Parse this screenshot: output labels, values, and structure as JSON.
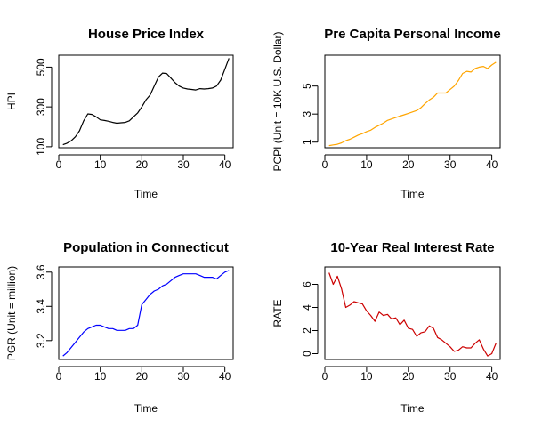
{
  "chart_data": [
    {
      "type": "line",
      "title": "House Price Index",
      "xlabel": "Time",
      "ylabel": "HPI",
      "color": "#000000",
      "xlim": [
        0,
        42
      ],
      "ylim": [
        95,
        560
      ],
      "xticks": [
        0,
        10,
        20,
        30,
        40
      ],
      "yticks": [
        100,
        300,
        500
      ],
      "x": [
        1,
        2,
        3,
        4,
        5,
        6,
        7,
        8,
        9,
        10,
        11,
        12,
        13,
        14,
        15,
        16,
        17,
        18,
        19,
        20,
        21,
        22,
        23,
        24,
        25,
        26,
        27,
        28,
        29,
        30,
        31,
        32,
        33,
        34,
        35,
        36,
        37,
        38,
        39,
        40,
        41
      ],
      "y": [
        110,
        118,
        130,
        150,
        180,
        230,
        265,
        262,
        250,
        235,
        232,
        228,
        222,
        218,
        220,
        222,
        230,
        250,
        270,
        300,
        335,
        360,
        405,
        450,
        470,
        468,
        445,
        422,
        405,
        395,
        390,
        388,
        385,
        392,
        390,
        392,
        395,
        405,
        435,
        490,
        545
      ]
    },
    {
      "type": "line",
      "title": "Pre Capita Personal Income",
      "xlabel": "Time",
      "ylabel": "PCPI (Unit = 10K U.S. Dollar)",
      "color": "#FFA500",
      "xlim": [
        0,
        42
      ],
      "ylim": [
        0.6,
        7.2
      ],
      "xticks": [
        0,
        10,
        20,
        30,
        40
      ],
      "yticks": [
        1,
        3,
        5
      ],
      "x": [
        1,
        2,
        3,
        4,
        5,
        6,
        7,
        8,
        9,
        10,
        11,
        12,
        13,
        14,
        15,
        16,
        17,
        18,
        19,
        20,
        21,
        22,
        23,
        24,
        25,
        26,
        27,
        28,
        29,
        30,
        31,
        32,
        33,
        34,
        35,
        36,
        37,
        38,
        39,
        40,
        41
      ],
      "y": [
        0.75,
        0.8,
        0.85,
        0.95,
        1.1,
        1.2,
        1.35,
        1.5,
        1.6,
        1.75,
        1.85,
        2.05,
        2.2,
        2.35,
        2.55,
        2.65,
        2.75,
        2.85,
        2.95,
        3.05,
        3.15,
        3.25,
        3.45,
        3.75,
        4.0,
        4.2,
        4.5,
        4.5,
        4.5,
        4.75,
        5.0,
        5.4,
        5.9,
        6.05,
        6.0,
        6.25,
        6.35,
        6.4,
        6.25,
        6.5,
        6.7
      ]
    },
    {
      "type": "line",
      "title": "Population in Connecticut",
      "xlabel": "Time",
      "ylabel": "PGR (Unit = million)",
      "color": "#0000FF",
      "xlim": [
        0,
        42
      ],
      "ylim": [
        3.09,
        3.63
      ],
      "xticks": [
        0,
        10,
        20,
        30,
        40
      ],
      "yticks": [
        3.2,
        3.4,
        3.6
      ],
      "x": [
        1,
        2,
        3,
        4,
        5,
        6,
        7,
        8,
        9,
        10,
        11,
        12,
        13,
        14,
        15,
        16,
        17,
        18,
        19,
        20,
        21,
        22,
        23,
        24,
        25,
        26,
        27,
        28,
        29,
        30,
        31,
        32,
        33,
        34,
        35,
        36,
        37,
        38,
        39,
        40,
        41
      ],
      "y": [
        3.11,
        3.13,
        3.16,
        3.19,
        3.22,
        3.25,
        3.27,
        3.28,
        3.29,
        3.29,
        3.28,
        3.27,
        3.27,
        3.26,
        3.26,
        3.26,
        3.27,
        3.27,
        3.29,
        3.41,
        3.44,
        3.47,
        3.49,
        3.5,
        3.52,
        3.53,
        3.55,
        3.57,
        3.58,
        3.59,
        3.59,
        3.59,
        3.59,
        3.58,
        3.57,
        3.57,
        3.57,
        3.56,
        3.58,
        3.6,
        3.61
      ]
    },
    {
      "type": "line",
      "title": "10-Year Real Interest Rate",
      "xlabel": "Time",
      "ylabel": "RATE",
      "color": "#CC0000",
      "xlim": [
        0,
        42
      ],
      "ylim": [
        -0.5,
        7.5
      ],
      "xticks": [
        0,
        10,
        20,
        30,
        40
      ],
      "yticks": [
        0,
        2,
        4,
        6
      ],
      "x": [
        1,
        2,
        3,
        4,
        5,
        6,
        7,
        8,
        9,
        10,
        11,
        12,
        13,
        14,
        15,
        16,
        17,
        18,
        19,
        20,
        21,
        22,
        23,
        24,
        25,
        26,
        27,
        28,
        29,
        30,
        31,
        32,
        33,
        34,
        35,
        36,
        37,
        38,
        39,
        40,
        41
      ],
      "y": [
        7.0,
        6.0,
        6.7,
        5.6,
        4.0,
        4.2,
        4.5,
        4.4,
        4.3,
        3.7,
        3.3,
        2.8,
        3.6,
        3.3,
        3.4,
        3.0,
        3.1,
        2.5,
        2.9,
        2.2,
        2.1,
        1.5,
        1.8,
        1.9,
        2.4,
        2.2,
        1.4,
        1.2,
        0.9,
        0.6,
        0.2,
        0.3,
        0.6,
        0.5,
        0.5,
        0.9,
        1.2,
        0.4,
        -0.2,
        0.0,
        0.9
      ]
    }
  ]
}
